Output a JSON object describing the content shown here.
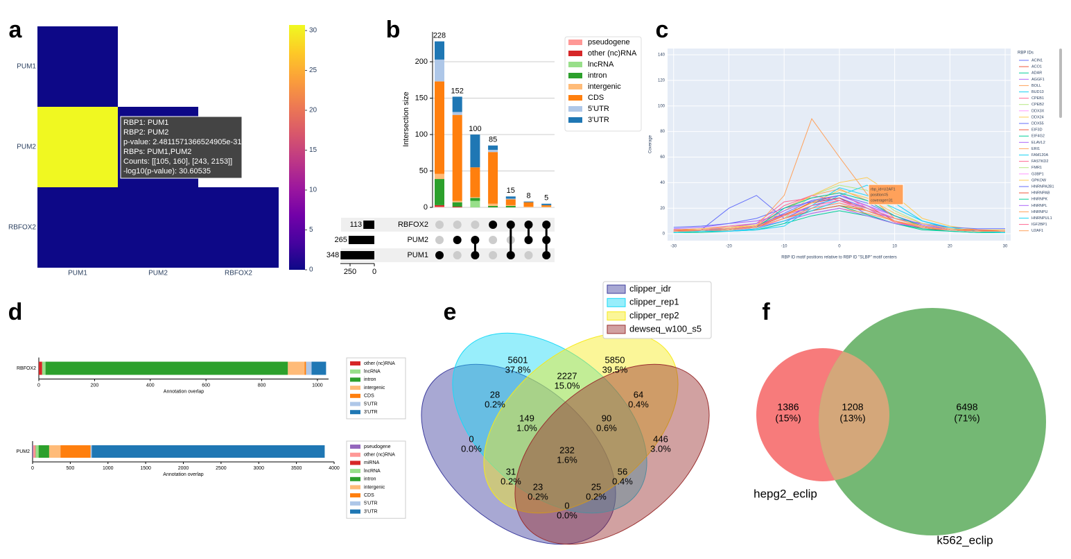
{
  "chart_data": [
    {
      "type": "heatmap",
      "label": "a",
      "rows": [
        "PUM1",
        "PUM2",
        "RBFOX2"
      ],
      "columns": [
        "PUM1",
        "PUM2",
        "RBFOX2"
      ],
      "values": [
        [
          0,
          null,
          null
        ],
        [
          30.60535,
          0,
          null
        ],
        [
          0,
          0,
          0
        ]
      ],
      "colorscale": "plasma",
      "zlim": [
        0,
        30.7
      ],
      "zticks": [
        0,
        5,
        10,
        15,
        20,
        25,
        30
      ],
      "tooltip": [
        "RBP1: PUM1",
        "RBP2: PUM2",
        "p-value: 2.4811571366524905e-31",
        "RBPs: PUM1,PUM2",
        "Counts: [[105, 160], [243, 2153]]",
        "-log10(p-value): 30.60535"
      ]
    },
    {
      "type": "upset",
      "label": "b",
      "y_label": "Intersection size",
      "ylim": [
        0,
        241
      ],
      "yticks": [
        0,
        50,
        100,
        150,
        200
      ],
      "grid": true,
      "totals": [
        228,
        152,
        100,
        85,
        15,
        8,
        5
      ],
      "series": [
        {
          "name": "pseudogene",
          "color": "#ff9896",
          "values": [
            1,
            0,
            0,
            0,
            0,
            0,
            0
          ]
        },
        {
          "name": "other (nc)RNA",
          "color": "#d62728",
          "values": [
            2,
            1,
            0,
            0,
            0,
            0,
            0
          ]
        },
        {
          "name": "lncRNA",
          "color": "#98df8a",
          "values": [
            0,
            0,
            9,
            0,
            0,
            0,
            0
          ]
        },
        {
          "name": "intron",
          "color": "#2ca02c",
          "values": [
            36,
            6,
            4,
            2,
            2,
            0,
            0
          ]
        },
        {
          "name": "intergenic",
          "color": "#ffbb78",
          "values": [
            7,
            2,
            1,
            3,
            1,
            1,
            1
          ]
        },
        {
          "name": "CDS",
          "color": "#ff7f0e",
          "values": [
            127,
            118,
            41,
            71,
            8,
            6,
            2
          ]
        },
        {
          "name": "5'UTR",
          "color": "#aec7e8",
          "values": [
            30,
            4,
            0,
            3,
            1,
            0,
            0
          ]
        },
        {
          "name": "3'UTR",
          "color": "#1f77b4",
          "values": [
            25,
            21,
            45,
            6,
            3,
            1,
            2
          ]
        }
      ],
      "sets": [
        "RBFOX2",
        "PUM2",
        "PUM1"
      ],
      "set_sizes": [
        113,
        265,
        348
      ],
      "set_xlim": [
        0,
        350
      ],
      "set_xticks": [
        0,
        250
      ],
      "memberships": [
        [
          2
        ],
        [
          1
        ],
        [
          1,
          2
        ],
        [
          0
        ],
        [
          0,
          2
        ],
        [
          0,
          1
        ],
        [
          0,
          1,
          2
        ]
      ]
    },
    {
      "type": "line",
      "label": "c",
      "x": [
        -30,
        -25,
        -20,
        -15,
        -10,
        -5,
        0,
        5,
        10,
        15,
        20,
        25,
        30
      ],
      "xlim": [
        -31.1,
        31
      ],
      "ylim": [
        -5.4,
        144.9
      ],
      "xticks": [
        -30,
        -20,
        -10,
        0,
        10,
        20,
        30
      ],
      "yticks": [
        0,
        20,
        40,
        60,
        80,
        100,
        120,
        140
      ],
      "grid": true,
      "x_label": "RBP ID motif positions relative to RBP ID \"SLBP\" motif centers",
      "y_label": "Coverage",
      "legend_title": "RBP IDs",
      "tooltip": [
        "rbp_id=U2AF1",
        "position=5",
        "coverage=31"
      ],
      "series": [
        {
          "name": "ACIN1",
          "color": "#636efa",
          "values": [
            2,
            3,
            20,
            30,
            12,
            22,
            28,
            15,
            8,
            5,
            3,
            2,
            2
          ]
        },
        {
          "name": "ACO1",
          "color": "#EF553B",
          "values": [
            3,
            2,
            4,
            5,
            14,
            25,
            30,
            22,
            10,
            4,
            3,
            2,
            2
          ]
        },
        {
          "name": "ADAR",
          "color": "#00cc96",
          "values": [
            1,
            2,
            3,
            4,
            10,
            18,
            22,
            15,
            8,
            3,
            2,
            1,
            1
          ]
        },
        {
          "name": "AGGF1",
          "color": "#ab63fa",
          "values": [
            4,
            5,
            8,
            10,
            15,
            20,
            24,
            18,
            12,
            6,
            4,
            3,
            3
          ]
        },
        {
          "name": "BOLL",
          "color": "#FFA15A",
          "values": [
            2,
            3,
            4,
            5,
            20,
            30,
            35,
            26,
            14,
            6,
            3,
            2,
            2
          ]
        },
        {
          "name": "BUD13",
          "color": "#19d3f3",
          "values": [
            1,
            2,
            3,
            3,
            8,
            22,
            36,
            30,
            20,
            10,
            4,
            2,
            2
          ]
        },
        {
          "name": "CPEB1",
          "color": "#FF6692",
          "values": [
            3,
            4,
            6,
            8,
            25,
            28,
            32,
            20,
            9,
            5,
            3,
            3,
            2
          ]
        },
        {
          "name": "CPEB2",
          "color": "#B6E880",
          "values": [
            2,
            2,
            3,
            5,
            12,
            30,
            38,
            34,
            18,
            8,
            4,
            3,
            2
          ]
        },
        {
          "name": "DDX3X",
          "color": "#FF97FF",
          "values": [
            1,
            2,
            2,
            4,
            10,
            20,
            26,
            22,
            12,
            6,
            3,
            2,
            1
          ]
        },
        {
          "name": "DDX24",
          "color": "#FECB52",
          "values": [
            2,
            3,
            5,
            6,
            18,
            30,
            40,
            44,
            30,
            12,
            6,
            3,
            2
          ]
        },
        {
          "name": "DDX55",
          "color": "#636efa",
          "values": [
            5,
            6,
            8,
            12,
            20,
            25,
            28,
            20,
            12,
            8,
            5,
            4,
            4
          ]
        },
        {
          "name": "EIF3D",
          "color": "#EF553B",
          "values": [
            2,
            3,
            4,
            6,
            15,
            24,
            28,
            18,
            10,
            5,
            3,
            2,
            2
          ]
        },
        {
          "name": "EIF4G2",
          "color": "#00cc96",
          "values": [
            1,
            1,
            2,
            3,
            8,
            14,
            18,
            14,
            8,
            4,
            2,
            1,
            1
          ]
        },
        {
          "name": "ELAVL2",
          "color": "#ab63fa",
          "values": [
            3,
            3,
            5,
            8,
            18,
            26,
            30,
            22,
            14,
            7,
            4,
            3,
            3
          ]
        },
        {
          "name": "ERI1",
          "color": "#FFA15A",
          "values": [
            2,
            2,
            3,
            4,
            10,
            16,
            20,
            16,
            10,
            6,
            3,
            2,
            2
          ]
        },
        {
          "name": "FAM120A",
          "color": "#19d3f3",
          "values": [
            1,
            2,
            2,
            3,
            6,
            20,
            30,
            38,
            24,
            10,
            5,
            2,
            1
          ]
        },
        {
          "name": "FASTKD2",
          "color": "#FF6692",
          "values": [
            2,
            3,
            4,
            6,
            22,
            30,
            26,
            18,
            10,
            5,
            3,
            2,
            2
          ]
        },
        {
          "name": "FMR1",
          "color": "#B6E880",
          "values": [
            1,
            2,
            3,
            5,
            10,
            18,
            22,
            20,
            12,
            6,
            3,
            2,
            1
          ]
        },
        {
          "name": "G3BP1",
          "color": "#FF97FF",
          "values": [
            2,
            2,
            3,
            4,
            12,
            20,
            24,
            20,
            12,
            6,
            3,
            2,
            2
          ]
        },
        {
          "name": "GPKOW",
          "color": "#FECB52",
          "values": [
            3,
            4,
            5,
            7,
            14,
            24,
            34,
            28,
            16,
            8,
            4,
            3,
            3
          ]
        },
        {
          "name": "HNRNPA2B1",
          "color": "#636efa",
          "values": [
            2,
            2,
            4,
            6,
            16,
            26,
            30,
            24,
            14,
            6,
            3,
            2,
            2
          ]
        },
        {
          "name": "HNRNPAB",
          "color": "#EF553B",
          "values": [
            3,
            3,
            4,
            5,
            12,
            18,
            22,
            18,
            10,
            5,
            3,
            3,
            2
          ]
        },
        {
          "name": "HNRNPK",
          "color": "#00cc96",
          "values": [
            1,
            2,
            3,
            5,
            20,
            28,
            32,
            26,
            14,
            6,
            3,
            2,
            1
          ]
        },
        {
          "name": "HNRNPL",
          "color": "#ab63fa",
          "values": [
            2,
            3,
            4,
            5,
            10,
            16,
            20,
            14,
            8,
            5,
            3,
            2,
            2
          ]
        },
        {
          "name": "HNRNPU",
          "color": "#FFA15A",
          "values": [
            2,
            2,
            3,
            5,
            12,
            20,
            24,
            18,
            10,
            5,
            3,
            2,
            2
          ]
        },
        {
          "name": "HNRNPUL1",
          "color": "#19d3f3",
          "values": [
            1,
            2,
            2,
            4,
            10,
            18,
            26,
            20,
            12,
            6,
            3,
            2,
            1
          ]
        },
        {
          "name": "IGF2BP1",
          "color": "#FF6692",
          "values": [
            2,
            3,
            4,
            6,
            14,
            22,
            26,
            20,
            12,
            6,
            3,
            2,
            2
          ]
        },
        {
          "name": "U2AF1",
          "color": "#FFA15A",
          "values": [
            2,
            3,
            4,
            6,
            30,
            90,
            60,
            31,
            12,
            6,
            3,
            2,
            2
          ]
        }
      ]
    },
    {
      "type": "hbar-stacked",
      "label": "d",
      "categories": [
        "RBFOX2"
      ],
      "xlim": [
        0,
        1040
      ],
      "xticks": [
        0,
        200,
        400,
        600,
        800,
        1000
      ],
      "x_label": "Annotation overlap",
      "series": [
        {
          "name": "other (nc)RNA",
          "color": "#d62728",
          "values": [
            12
          ]
        },
        {
          "name": "lncRNA",
          "color": "#98df8a",
          "values": [
            12
          ]
        },
        {
          "name": "intron",
          "color": "#2ca02c",
          "values": [
            870
          ]
        },
        {
          "name": "intergenic",
          "color": "#ffbb78",
          "values": [
            60
          ]
        },
        {
          "name": "CDS",
          "color": "#ff7f0e",
          "values": [
            5
          ]
        },
        {
          "name": "5'UTR",
          "color": "#aec7e8",
          "values": [
            20
          ]
        },
        {
          "name": "3'UTR",
          "color": "#1f77b4",
          "values": [
            52
          ]
        }
      ]
    },
    {
      "type": "hbar-stacked",
      "categories": [
        "PUM2"
      ],
      "xlim": [
        0,
        4000
      ],
      "xticks": [
        0,
        500,
        1000,
        1500,
        2000,
        2500,
        3000,
        3500,
        4000
      ],
      "x_label": "Annotation overlap",
      "series": [
        {
          "name": "pseudogene",
          "color": "#9467bd",
          "values": [
            10
          ]
        },
        {
          "name": "other (nc)RNA",
          "color": "#ff9896",
          "values": [
            25
          ]
        },
        {
          "name": "miRNA",
          "color": "#d62728",
          "values": [
            5
          ]
        },
        {
          "name": "lncRNA",
          "color": "#98df8a",
          "values": [
            40
          ]
        },
        {
          "name": "intron",
          "color": "#2ca02c",
          "values": [
            140
          ]
        },
        {
          "name": "intergenic",
          "color": "#ffbb78",
          "values": [
            150
          ]
        },
        {
          "name": "CDS",
          "color": "#ff7f0e",
          "values": [
            400
          ]
        },
        {
          "name": "5'UTR",
          "color": "#aec7e8",
          "values": [
            15
          ]
        },
        {
          "name": "3'UTR",
          "color": "#1f77b4",
          "values": [
            3090
          ]
        }
      ]
    },
    {
      "type": "venn",
      "label": "e",
      "sets": [
        {
          "name": "clipper_idr",
          "color": "#3d3d9e"
        },
        {
          "name": "clipper_rep1",
          "color": "#1ad9f7"
        },
        {
          "name": "clipper_rep2",
          "color": "#f7ea1a"
        },
        {
          "name": "dewseq_w100_s5",
          "color": "#9a2f2f"
        }
      ],
      "values": [
        5601,
        5850,
        2227,
        28,
        64,
        0,
        149,
        90,
        446,
        232,
        31,
        56,
        23,
        25,
        0
      ],
      "percent_labels": [
        "37.8%",
        "39.5%",
        "15.0%",
        "0.2%",
        "0.4%",
        "0.0%",
        "1.0%",
        "0.6%",
        "3.0%",
        "1.6%",
        "0.2%",
        "0.4%",
        "0.2%",
        "0.2%",
        "0.0%"
      ]
    },
    {
      "type": "venn",
      "label": "f",
      "sets": [
        {
          "name": "hepg2_eclip",
          "color": "#f77b7b"
        },
        {
          "name": "k562_eclip",
          "color": "#74b874"
        }
      ],
      "overlap_color": "#d4a77a",
      "values": [
        1386,
        1208,
        6498
      ],
      "percent_labels": [
        "(15%)",
        "(13%)",
        "(71%)"
      ]
    }
  ]
}
